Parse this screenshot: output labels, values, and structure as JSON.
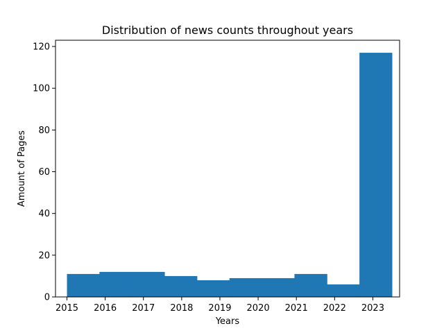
{
  "chart_data": {
    "type": "bar",
    "title": "Distribution of news counts throughout years",
    "xlabel": "Years",
    "ylabel": "Amount of Pages",
    "xlim": [
      2014.7,
      2023.7
    ],
    "ylim": [
      0,
      123
    ],
    "xticks": [
      2015,
      2016,
      2017,
      2018,
      2019,
      2020,
      2021,
      2022,
      2023
    ],
    "yticks": [
      0,
      20,
      40,
      60,
      80,
      100,
      120
    ],
    "bins": [
      {
        "start": 2015.0,
        "end": 2015.85,
        "value": 11
      },
      {
        "start": 2015.85,
        "end": 2016.7,
        "value": 12
      },
      {
        "start": 2016.7,
        "end": 2017.55,
        "value": 12
      },
      {
        "start": 2017.55,
        "end": 2018.4,
        "value": 10
      },
      {
        "start": 2018.4,
        "end": 2019.25,
        "value": 8
      },
      {
        "start": 2019.25,
        "end": 2020.1,
        "value": 9
      },
      {
        "start": 2020.1,
        "end": 2020.95,
        "value": 9
      },
      {
        "start": 2020.95,
        "end": 2021.8,
        "value": 11
      },
      {
        "start": 2021.8,
        "end": 2022.65,
        "value": 6
      },
      {
        "start": 2022.65,
        "end": 2023.5,
        "value": 117
      }
    ],
    "grid": false,
    "bar_color": "#1f77b4"
  }
}
